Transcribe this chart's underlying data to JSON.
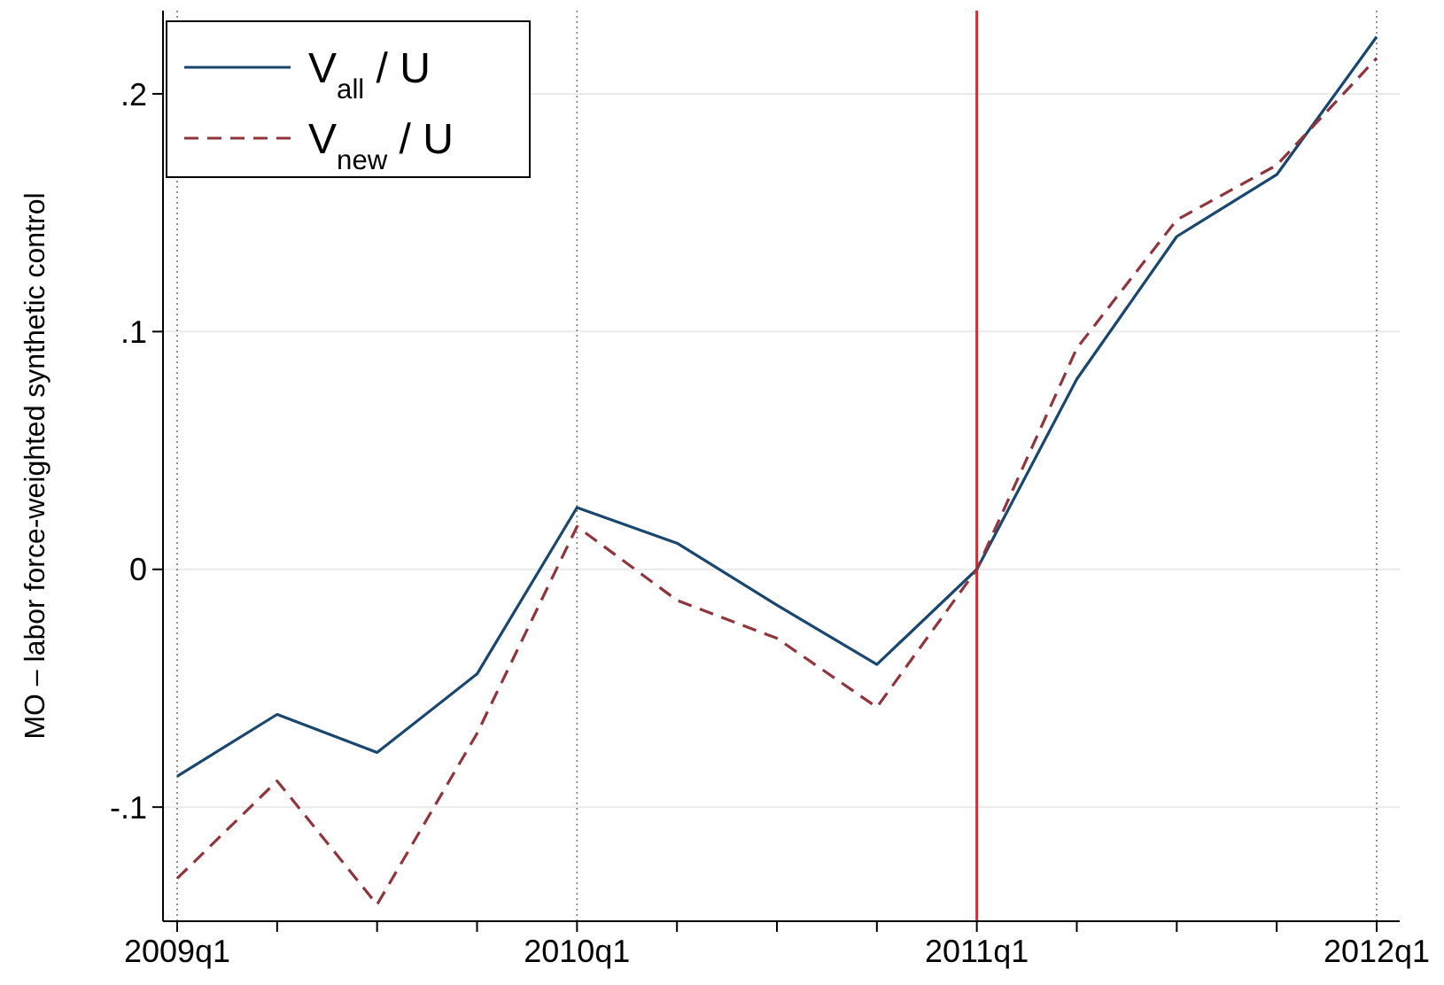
{
  "chart_data": {
    "type": "line",
    "ylabel": "MO – labor force-weighted synthetic control",
    "categories": [
      "2009q1",
      null,
      null,
      null,
      "2010q1",
      null,
      null,
      null,
      "2011q1",
      null,
      null,
      null,
      "2012q1"
    ],
    "ylim": [
      -0.148,
      0.235
    ],
    "yticks": [
      {
        "value": -0.1,
        "label": "-.1"
      },
      {
        "value": 0,
        "label": "0"
      },
      {
        "value": 0.1,
        "label": ".1"
      },
      {
        "value": 0.2,
        "label": ".2"
      }
    ],
    "grid": true,
    "legend": "top left",
    "series": [
      {
        "name": "V$_{all}$ / U",
        "color": "#1a476f",
        "line_style": "solid",
        "values": [
          -0.087,
          -0.061,
          -0.077,
          -0.044,
          0.026,
          0.011,
          -0.015,
          -0.04,
          0,
          0.08,
          0.14,
          0.166,
          0.224
        ]
      },
      {
        "name": "V$_{new}$ / U",
        "color": "#90353b",
        "line_style": "dashed",
        "values": [
          -0.13,
          -0.089,
          -0.141,
          -0.069,
          0.018,
          -0.013,
          -0.029,
          -0.058,
          0,
          0.093,
          0.147,
          0.17,
          0.215
        ]
      }
    ],
    "ref_lines": [
      {
        "axis": "x",
        "value": "2011q1",
        "label": null,
        "color": "#e8222a"
      }
    ]
  }
}
